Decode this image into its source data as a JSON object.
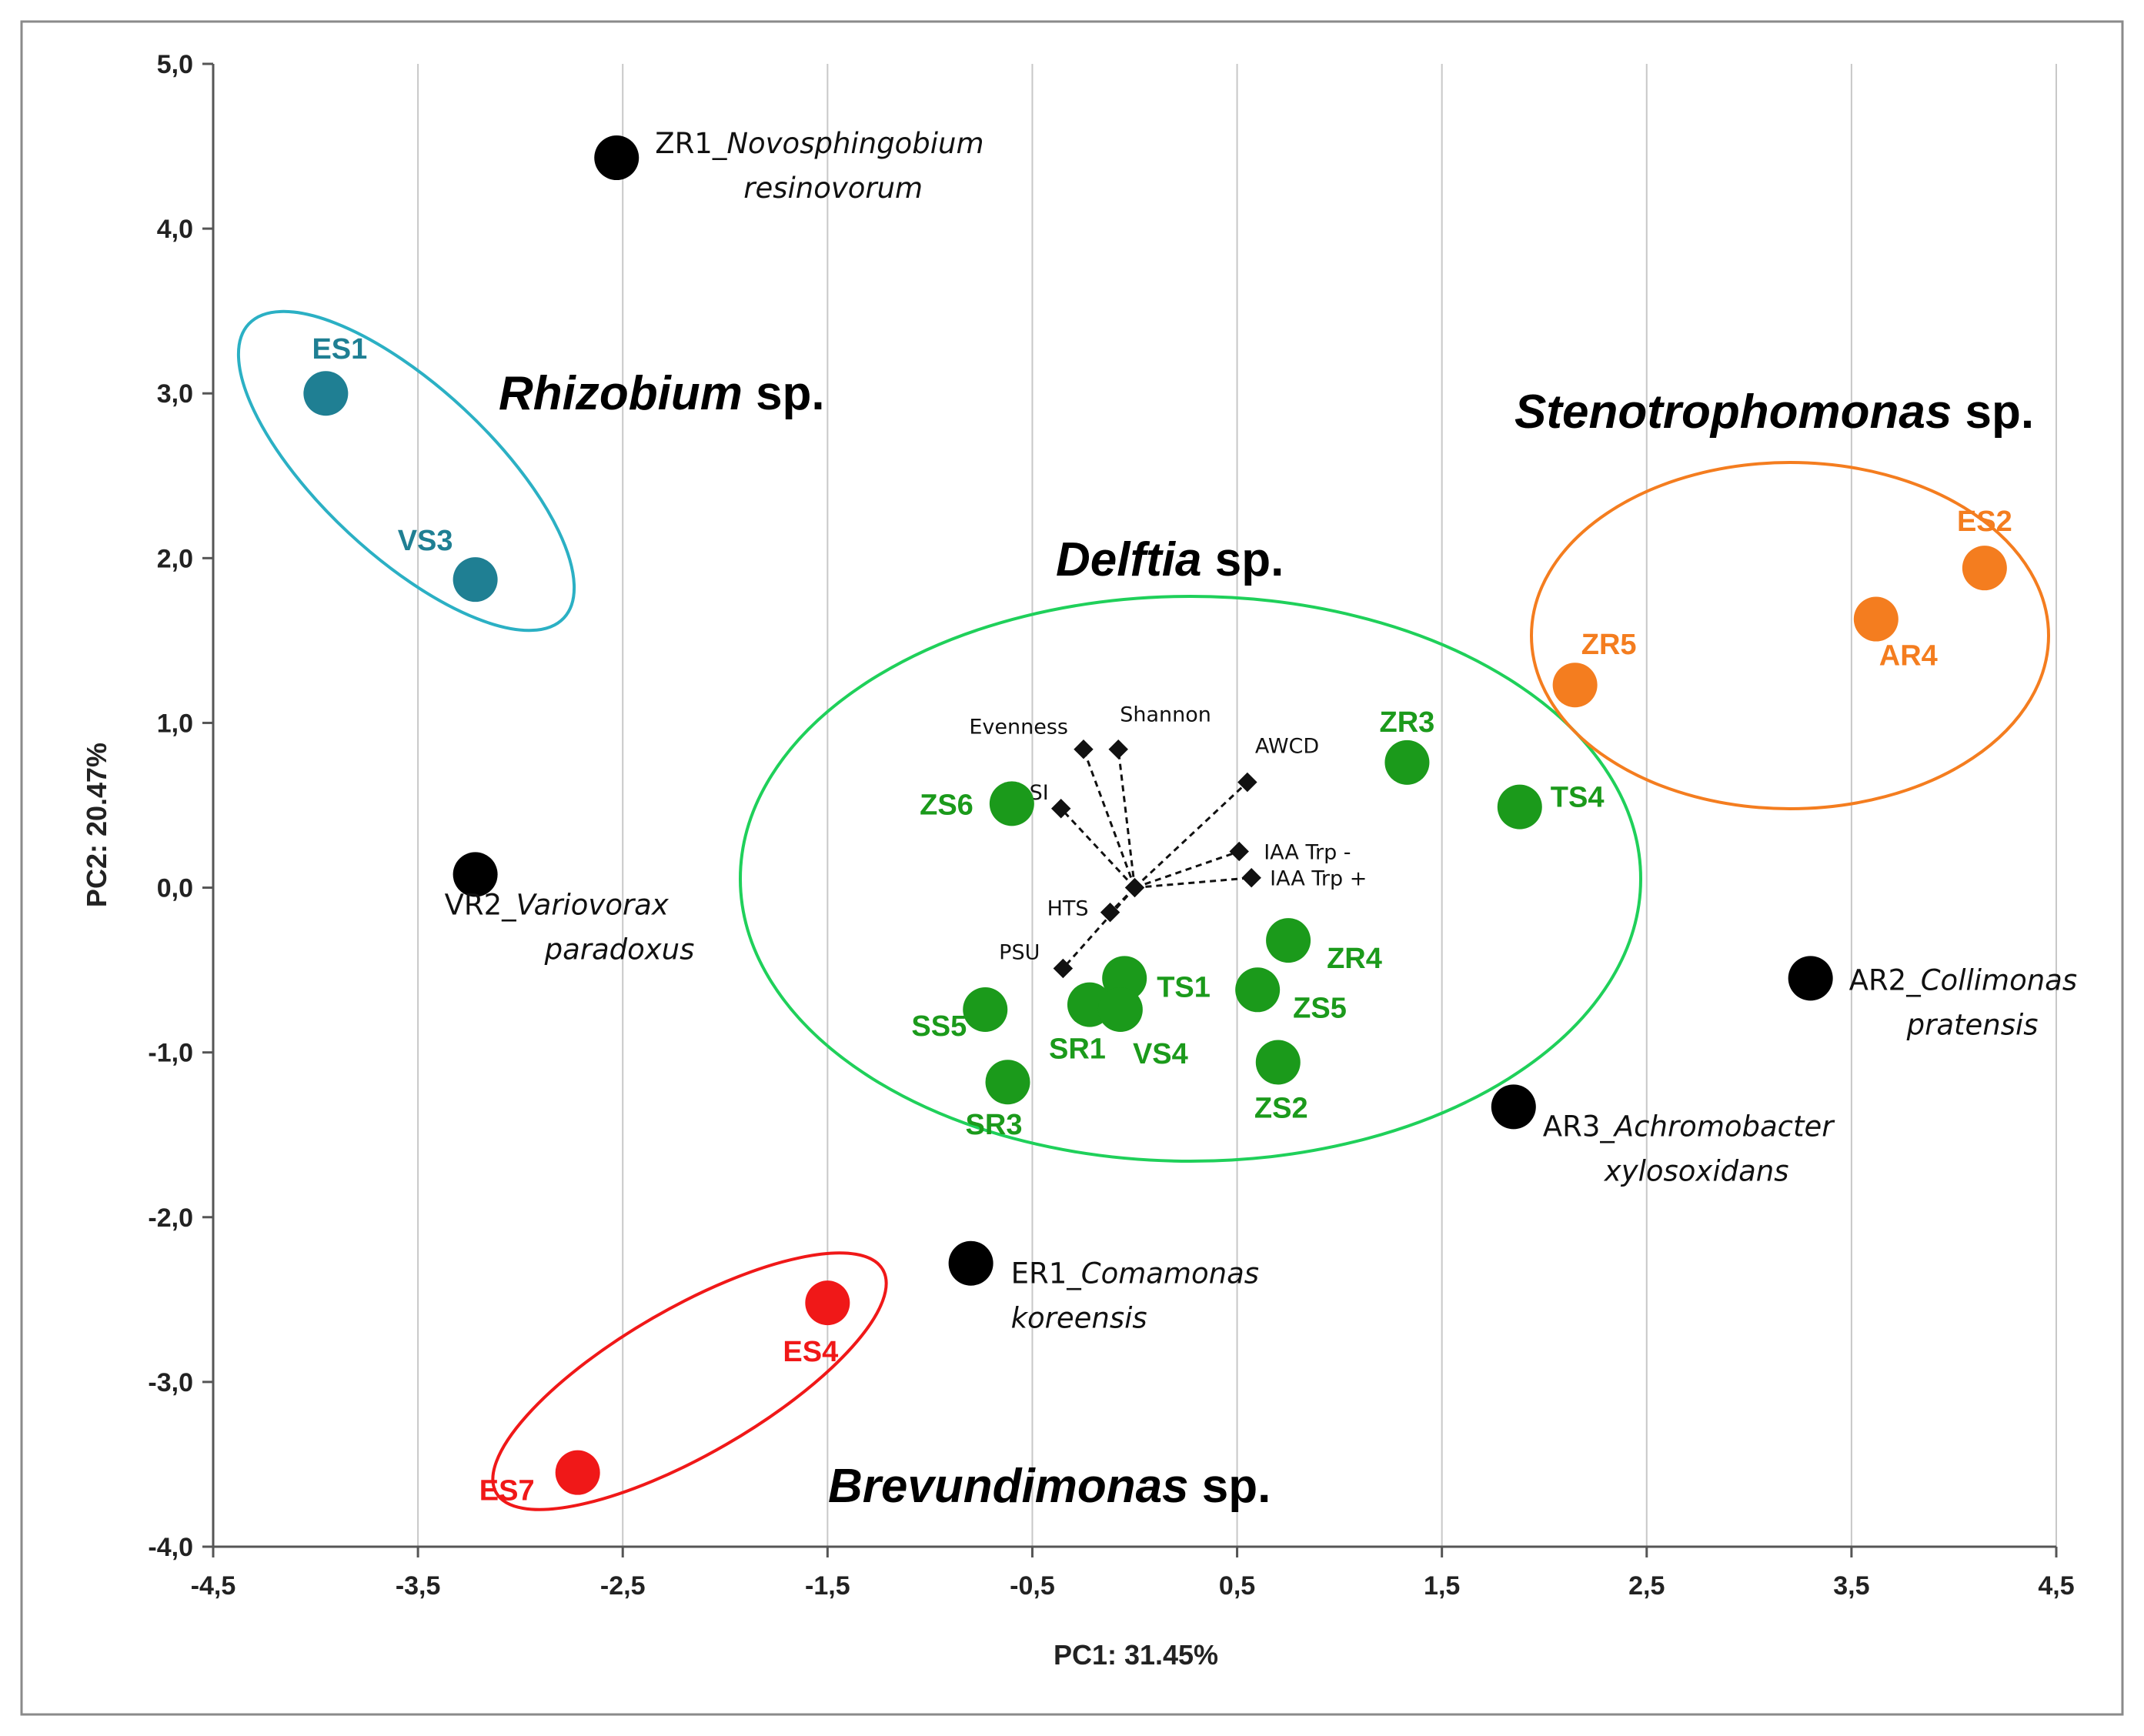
{
  "colors": {
    "black": "#000000",
    "teal": "#1f7f93",
    "teal_ring": "#2bb0c4",
    "green": "#1b9a1b",
    "green_ring": "#1fd05a",
    "orange": "#f47d1f",
    "orange_ring": "#f47d1f",
    "red": "#f01818",
    "red_ring": "#f01818"
  },
  "chart_data": {
    "type": "scatter",
    "title": "",
    "xlabel": "PC1: 31.45%",
    "ylabel": "PC2: 20.47%",
    "xlim": [
      -4.5,
      4.5
    ],
    "ylim": [
      -4.0,
      5.0
    ],
    "x_ticks": [
      -4.5,
      -3.5,
      -2.5,
      -1.5,
      -0.5,
      0.5,
      1.5,
      2.5,
      3.5,
      4.5
    ],
    "x_tick_labels": [
      "-4,5",
      "-3,5",
      "-2,5",
      "-1,5",
      "-0,5",
      "0,5",
      "1,5",
      "2,5",
      "3,5",
      "4,5"
    ],
    "y_ticks": [
      -4,
      -3,
      -2,
      -1,
      0,
      1,
      2,
      3,
      4,
      5
    ],
    "y_tick_labels": [
      "-4,0",
      "-3,0",
      "-2,0",
      "-1,0",
      "0,0",
      "1,0",
      "2,0",
      "3,0",
      "4,0",
      "5,0"
    ],
    "grid": "vertical",
    "points": [
      {
        "label": "ES1",
        "x": -3.95,
        "y": 3.0,
        "group": "teal"
      },
      {
        "label": "VS3",
        "x": -3.22,
        "y": 1.87,
        "group": "teal"
      },
      {
        "label": "ZR1",
        "species": "Novosphingobium resinovorum",
        "x": -2.53,
        "y": 4.43,
        "group": "black"
      },
      {
        "label": "VR2",
        "species": "Variovorax paradoxus",
        "x": -3.22,
        "y": 0.08,
        "group": "black"
      },
      {
        "label": "ER1",
        "species": "Comamonas koreensis",
        "x": -0.8,
        "y": -2.28,
        "group": "black"
      },
      {
        "label": "AR2",
        "species": "Collimonas pratensis",
        "x": 3.3,
        "y": -0.55,
        "group": "black"
      },
      {
        "label": "AR3",
        "species": "Achromobacter xylosoxidans",
        "x": 1.85,
        "y": -1.33,
        "group": "black"
      },
      {
        "label": "ES2",
        "x": 4.15,
        "y": 1.94,
        "group": "orange"
      },
      {
        "label": "AR4",
        "x": 3.62,
        "y": 1.63,
        "group": "orange"
      },
      {
        "label": "ZR5",
        "x": 2.15,
        "y": 1.23,
        "group": "orange"
      },
      {
        "label": "ES4",
        "x": -1.5,
        "y": -2.52,
        "group": "red"
      },
      {
        "label": "ES7",
        "x": -2.72,
        "y": -3.55,
        "group": "red"
      },
      {
        "label": "ZR3",
        "x": 1.33,
        "y": 0.76,
        "group": "green"
      },
      {
        "label": "TS4",
        "x": 1.88,
        "y": 0.49,
        "group": "green"
      },
      {
        "label": "ZS6",
        "x": -0.6,
        "y": 0.51,
        "group": "green"
      },
      {
        "label": "ZR4",
        "x": 0.75,
        "y": -0.32,
        "group": "green"
      },
      {
        "label": "ZS5",
        "x": 0.6,
        "y": -0.62,
        "group": "green"
      },
      {
        "label": "TS1",
        "x": -0.05,
        "y": -0.55,
        "group": "green"
      },
      {
        "label": "SS5",
        "x": -0.73,
        "y": -0.74,
        "group": "green"
      },
      {
        "label": "SR1",
        "x": -0.22,
        "y": -0.71,
        "group": "green"
      },
      {
        "label": "VS4",
        "x": -0.07,
        "y": -0.74,
        "group": "green"
      },
      {
        "label": "ZS2",
        "x": 0.7,
        "y": -1.06,
        "group": "green"
      },
      {
        "label": "SR3",
        "x": -0.62,
        "y": -1.18,
        "group": "green"
      }
    ],
    "vectors": [
      {
        "label": "Evenness",
        "x": -0.25,
        "y": 0.84
      },
      {
        "label": "Shannon",
        "x": -0.08,
        "y": 0.84
      },
      {
        "label": "SI",
        "x": -0.36,
        "y": 0.48
      },
      {
        "label": "AWCD",
        "x": 0.55,
        "y": 0.64
      },
      {
        "label": "IAA Trp -",
        "x": 0.51,
        "y": 0.22
      },
      {
        "label": "IAA Trp +",
        "x": 0.57,
        "y": 0.06
      },
      {
        "label": "HTS",
        "x": -0.12,
        "y": -0.15
      },
      {
        "label": "PSU",
        "x": -0.35,
        "y": -0.49
      }
    ],
    "vector_origin": {
      "x": 0.0,
      "y": 0.0
    },
    "groups": [
      {
        "name_italic": "Rhizobium",
        "name_suffix": " sp.",
        "color": "teal"
      },
      {
        "name_italic": "Delftia",
        "name_suffix": " sp.",
        "color": "green"
      },
      {
        "name_italic": "Stenotrophomonas",
        "name_suffix": " sp.",
        "color": "orange"
      },
      {
        "name_italic": "Brevundimonas",
        "name_suffix": " sp.",
        "color": "red"
      }
    ]
  }
}
